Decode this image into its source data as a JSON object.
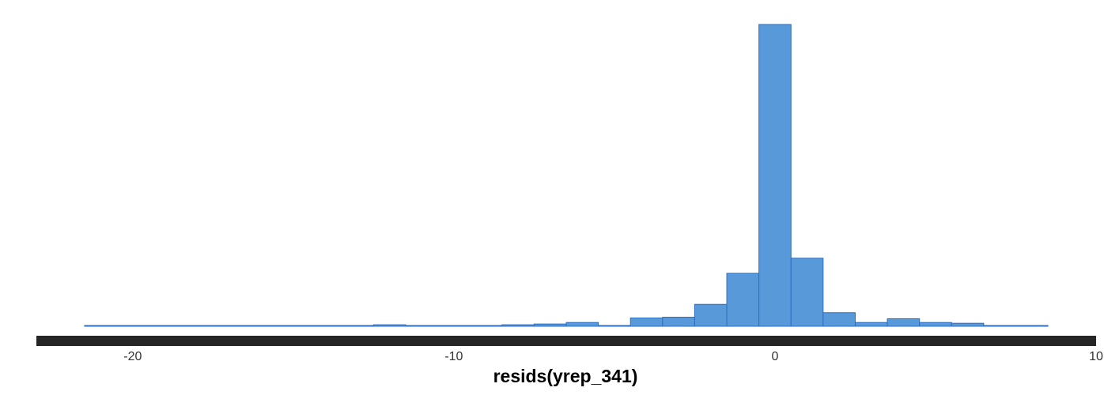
{
  "chart_data": {
    "type": "bar",
    "title": "",
    "xlabel": "resids(yrep_341)",
    "ylabel": "",
    "xlim": [
      -23,
      10
    ],
    "ylim": [
      0,
      400
    ],
    "grid": false,
    "bin_width": 1,
    "x_ticks": [
      -20,
      -10,
      0,
      10
    ],
    "x_tick_labels": [
      "-20",
      "-10",
      "0",
      "10"
    ],
    "bins": [
      {
        "x0": -21.5,
        "x1": -20.5,
        "count": 1
      },
      {
        "x0": -20.5,
        "x1": -19.5,
        "count": 0
      },
      {
        "x0": -19.5,
        "x1": -18.5,
        "count": 0
      },
      {
        "x0": -18.5,
        "x1": -17.5,
        "count": 0
      },
      {
        "x0": -17.5,
        "x1": -16.5,
        "count": 0
      },
      {
        "x0": -16.5,
        "x1": -15.5,
        "count": 0
      },
      {
        "x0": -15.5,
        "x1": -14.5,
        "count": 0
      },
      {
        "x0": -14.5,
        "x1": -13.5,
        "count": 0
      },
      {
        "x0": -13.5,
        "x1": -12.5,
        "count": 0
      },
      {
        "x0": -12.5,
        "x1": -11.5,
        "count": 2
      },
      {
        "x0": -11.5,
        "x1": -10.5,
        "count": 1
      },
      {
        "x0": -10.5,
        "x1": -9.5,
        "count": 0
      },
      {
        "x0": -9.5,
        "x1": -8.5,
        "count": 0
      },
      {
        "x0": -8.5,
        "x1": -7.5,
        "count": 2
      },
      {
        "x0": -7.5,
        "x1": -6.5,
        "count": 3
      },
      {
        "x0": -6.5,
        "x1": -5.5,
        "count": 5
      },
      {
        "x0": -5.5,
        "x1": -4.5,
        "count": 1
      },
      {
        "x0": -4.5,
        "x1": -3.5,
        "count": 11
      },
      {
        "x0": -3.5,
        "x1": -2.5,
        "count": 12
      },
      {
        "x0": -2.5,
        "x1": -1.5,
        "count": 29
      },
      {
        "x0": -1.5,
        "x1": -0.5,
        "count": 70
      },
      {
        "x0": -0.5,
        "x1": 0.5,
        "count": 399
      },
      {
        "x0": 0.5,
        "x1": 1.5,
        "count": 90
      },
      {
        "x0": 1.5,
        "x1": 2.5,
        "count": 18
      },
      {
        "x0": 2.5,
        "x1": 3.5,
        "count": 5
      },
      {
        "x0": 3.5,
        "x1": 4.5,
        "count": 10
      },
      {
        "x0": 4.5,
        "x1": 5.5,
        "count": 5
      },
      {
        "x0": 5.5,
        "x1": 6.5,
        "count": 4
      },
      {
        "x0": 6.5,
        "x1": 7.5,
        "count": 1
      },
      {
        "x0": 7.5,
        "x1": 8.5,
        "count": 1
      }
    ],
    "colors": {
      "bar_fill": "#5899DA",
      "bar_stroke": "#2E6DBF",
      "axis_line": "#262626"
    }
  }
}
